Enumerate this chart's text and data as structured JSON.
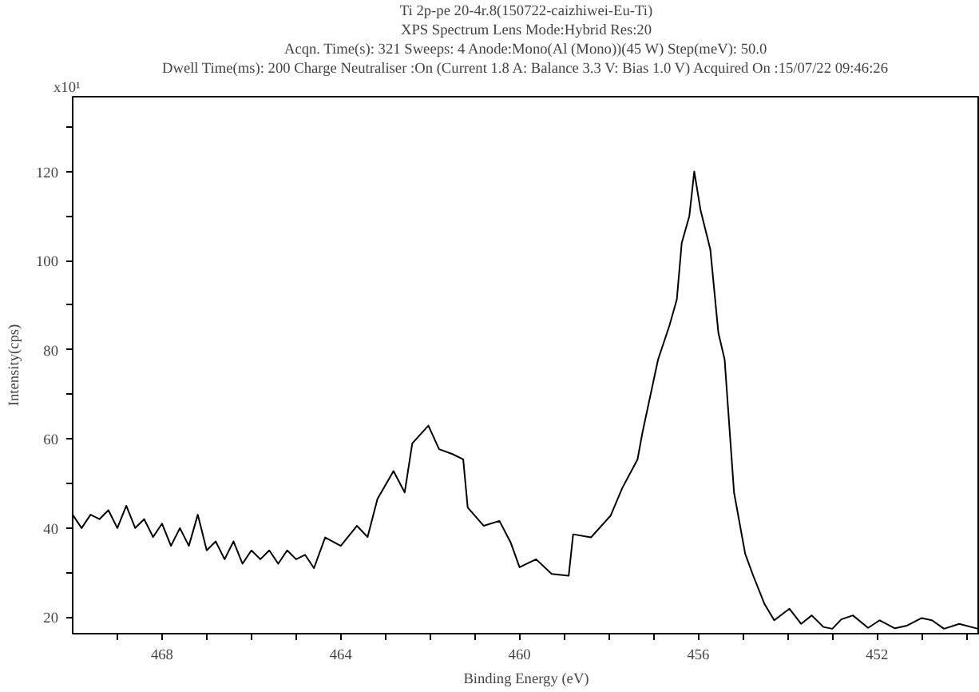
{
  "chart_data": {
    "type": "line",
    "title": "Ti 2p-pe 20-4r.8(150722-caizhiwei-Eu-Ti)",
    "subtitle": "XPS Spectrum Lens Mode:Hybrid Res:20",
    "xlabel": "Binding Energy (eV)",
    "ylabel": "Intensity(cps)",
    "annotations": [
      "Acqn. Time(s): 321 Sweeps: 4 Anode:Mono(Al (Mono))(45 W) Step(meV): 50.0",
      "Dwell Time(ms): 200 Charge Neutraliser :On (Current 1.8 A: Balance 3.3 V: Bias 1.0 V) Acquired On :15/07/22 09:46:26",
      "x10¹"
    ],
    "xlim": [
      470,
      449.7
    ],
    "ylim": [
      16.3,
      136.8
    ],
    "xticks": [
      {
        "value": 469,
        "label": null
      },
      468,
      {
        "value": 467,
        "label": null
      },
      {
        "value": 466,
        "label": null
      },
      {
        "value": 465,
        "label": null
      },
      464,
      {
        "value": 463,
        "label": null
      },
      {
        "value": 462,
        "label": null
      },
      {
        "value": 461,
        "label": null
      },
      460,
      {
        "value": 459,
        "label": null
      },
      {
        "value": 458,
        "label": null
      },
      {
        "value": 457,
        "label": null
      },
      456,
      {
        "value": 455,
        "label": null
      },
      {
        "value": 454,
        "label": null
      },
      {
        "value": 453,
        "label": null
      },
      452,
      {
        "value": 451,
        "label": null
      },
      {
        "value": 450,
        "label": null
      }
    ],
    "yticks": [
      20,
      {
        "value": 30,
        "label": null
      },
      40,
      {
        "value": 50,
        "label": null
      },
      60,
      {
        "value": 70,
        "label": null
      },
      80,
      {
        "value": 90,
        "label": null
      },
      100,
      {
        "value": 110,
        "label": null
      },
      120,
      {
        "value": 130,
        "label": null
      }
    ],
    "grid": false,
    "marker": "none",
    "line_style": "solid",
    "series": [
      {
        "color": "#000000",
        "x": [
          470,
          469.8,
          469.6,
          469.4,
          469.2,
          469.0,
          468.8,
          468.6,
          468.4,
          468.2,
          468.0,
          467.8,
          467.6,
          467.4,
          467.2,
          467.0,
          466.8,
          466.6,
          466.4,
          466.2,
          466.0,
          465.8,
          465.6,
          465.4,
          465.2,
          465.0,
          464.8,
          464.6,
          464.35,
          464.0,
          463.64,
          463.4,
          463.18,
          462.82,
          462.57,
          462.4,
          462.04,
          461.8,
          461.5,
          461.26,
          461.16,
          460.8,
          460.45,
          460.2,
          460.0,
          459.63,
          459.28,
          458.9,
          458.8,
          458.4,
          457.96,
          457.7,
          457.36,
          457.25,
          456.9,
          456.65,
          456.48,
          456.37,
          456.2,
          456.09,
          455.95,
          455.73,
          455.55,
          455.41,
          455.2,
          454.95,
          454.77,
          454.52,
          454.3,
          453.96,
          453.7,
          453.46,
          453.2,
          453.0,
          452.8,
          452.54,
          452.2,
          451.94,
          451.6,
          451.33,
          451.0,
          450.77,
          450.5,
          450.16,
          449.74
        ],
        "values": [
          43,
          40,
          43,
          42,
          44,
          40,
          45,
          40,
          42,
          38,
          41,
          36,
          40,
          36,
          43,
          35,
          37,
          33,
          37,
          32,
          35,
          33,
          35,
          32,
          35,
          33,
          34,
          31,
          37.9,
          36,
          40.5,
          38,
          46.5,
          52.8,
          48,
          59,
          63,
          57.7,
          56.6,
          55.4,
          44.6,
          40.5,
          41.6,
          36.8,
          31.2,
          33,
          29.7,
          29.3,
          38.6,
          37.9,
          42.8,
          49,
          55.4,
          61.4,
          77.8,
          85.3,
          91.3,
          104,
          110,
          120,
          111.4,
          102.5,
          83.8,
          77.8,
          48,
          34.2,
          29.3,
          23,
          19.3,
          21.9,
          18.5,
          20.4,
          17.8,
          17.4,
          19.5,
          20.4,
          17.6,
          19.3,
          17.5,
          18.1,
          19.8,
          19.3,
          17.4,
          18.5,
          17.4
        ]
      }
    ]
  }
}
